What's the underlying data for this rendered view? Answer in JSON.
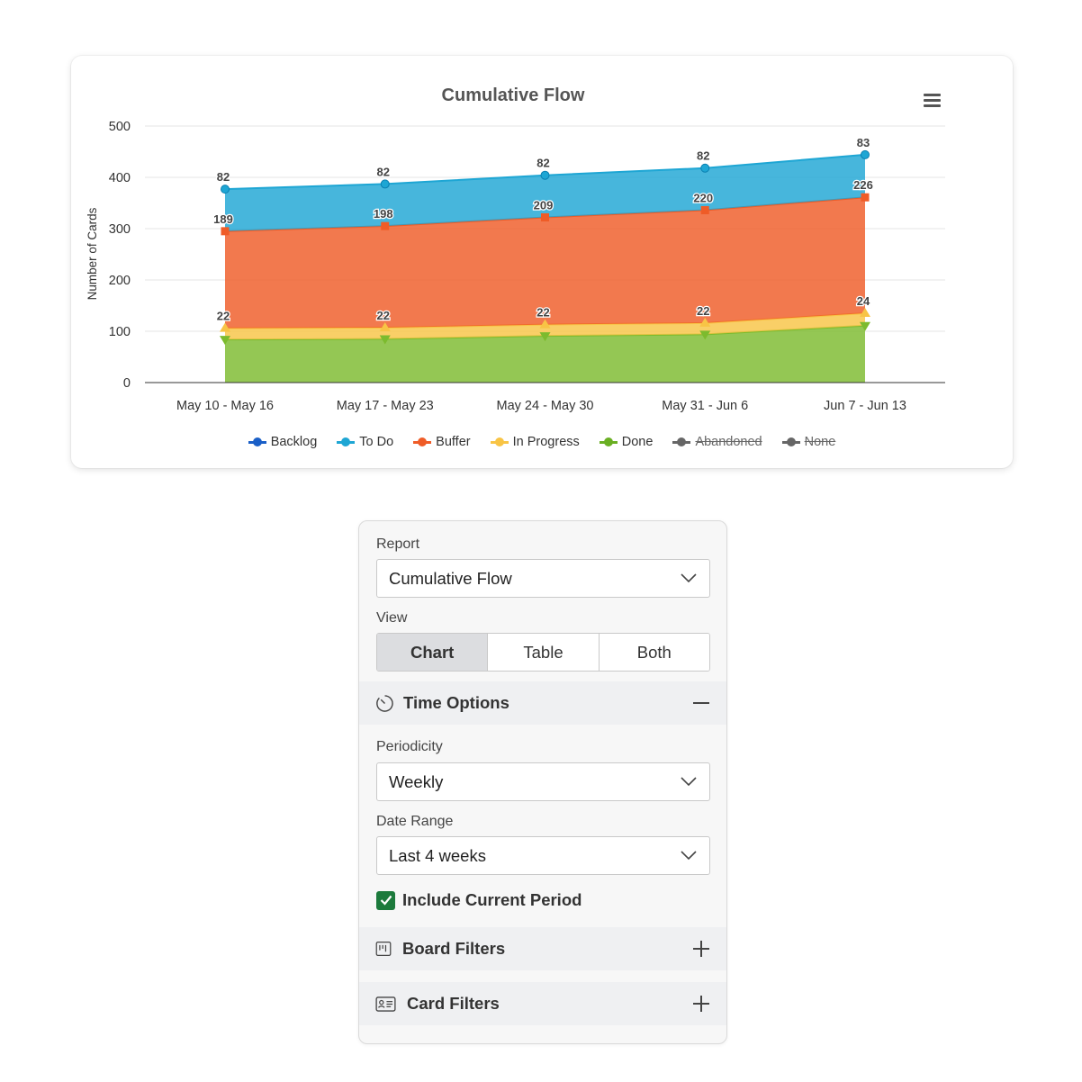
{
  "chart_data": {
    "type": "area",
    "stacked": true,
    "title": "Cumulative Flow",
    "ylabel": "Number of Cards",
    "xlabel": "",
    "ylim": [
      0,
      500
    ],
    "yticks": [
      0,
      100,
      200,
      300,
      400,
      500
    ],
    "grid": true,
    "legend_position": "bottom",
    "categories": [
      "May 10 - May 16",
      "May 17 - May 23",
      "May 24 - May 30",
      "May 31 - Jun 6",
      "Jun 7 - Jun 13"
    ],
    "series": [
      {
        "name": "Done",
        "color": "#7cbb2e",
        "values": [
          84,
          85,
          91,
          94,
          111
        ],
        "show_labels": false,
        "marker": "triangle-down",
        "visible": true
      },
      {
        "name": "In Progress",
        "color": "#f8c445",
        "values": [
          22,
          22,
          22,
          22,
          24
        ],
        "show_labels": true,
        "marker": "triangle",
        "visible": true
      },
      {
        "name": "Buffer",
        "color": "#ef5c27",
        "values": [
          189,
          198,
          209,
          220,
          226
        ],
        "show_labels": true,
        "marker": "square",
        "visible": true
      },
      {
        "name": "To Do",
        "color": "#1ea6d4",
        "values": [
          82,
          82,
          82,
          82,
          83
        ],
        "show_labels": true,
        "marker": "circle",
        "visible": true
      }
    ],
    "legend": [
      {
        "name": "Backlog",
        "color": "#1a5fc7",
        "visible": true
      },
      {
        "name": "To Do",
        "color": "#1ea6d4",
        "visible": true
      },
      {
        "name": "Buffer",
        "color": "#ef5c27",
        "visible": true
      },
      {
        "name": "In Progress",
        "color": "#f8c445",
        "visible": true
      },
      {
        "name": "Done",
        "color": "#6aaf23",
        "visible": true
      },
      {
        "name": "Abandoned",
        "color": "#666666",
        "visible": false
      },
      {
        "name": "None",
        "color": "#666666",
        "visible": false
      }
    ]
  },
  "panel": {
    "report": {
      "label": "Report",
      "value": "Cumulative Flow"
    },
    "view": {
      "label": "View",
      "options": [
        "Chart",
        "Table",
        "Both"
      ],
      "selected": "Chart"
    },
    "time_options": {
      "title": "Time Options",
      "icon": "timer-icon",
      "expanded": true
    },
    "periodicity": {
      "label": "Periodicity",
      "value": "Weekly"
    },
    "date_range": {
      "label": "Date Range",
      "value": "Last 4 weeks"
    },
    "include_current": {
      "label": "Include Current Period",
      "checked": true,
      "color": "#1c7a3c"
    },
    "board_filters": {
      "title": "Board Filters",
      "icon": "board-icon",
      "expanded": false
    },
    "card_filters": {
      "title": "Card Filters",
      "icon": "id-card-icon",
      "expanded": false
    }
  }
}
